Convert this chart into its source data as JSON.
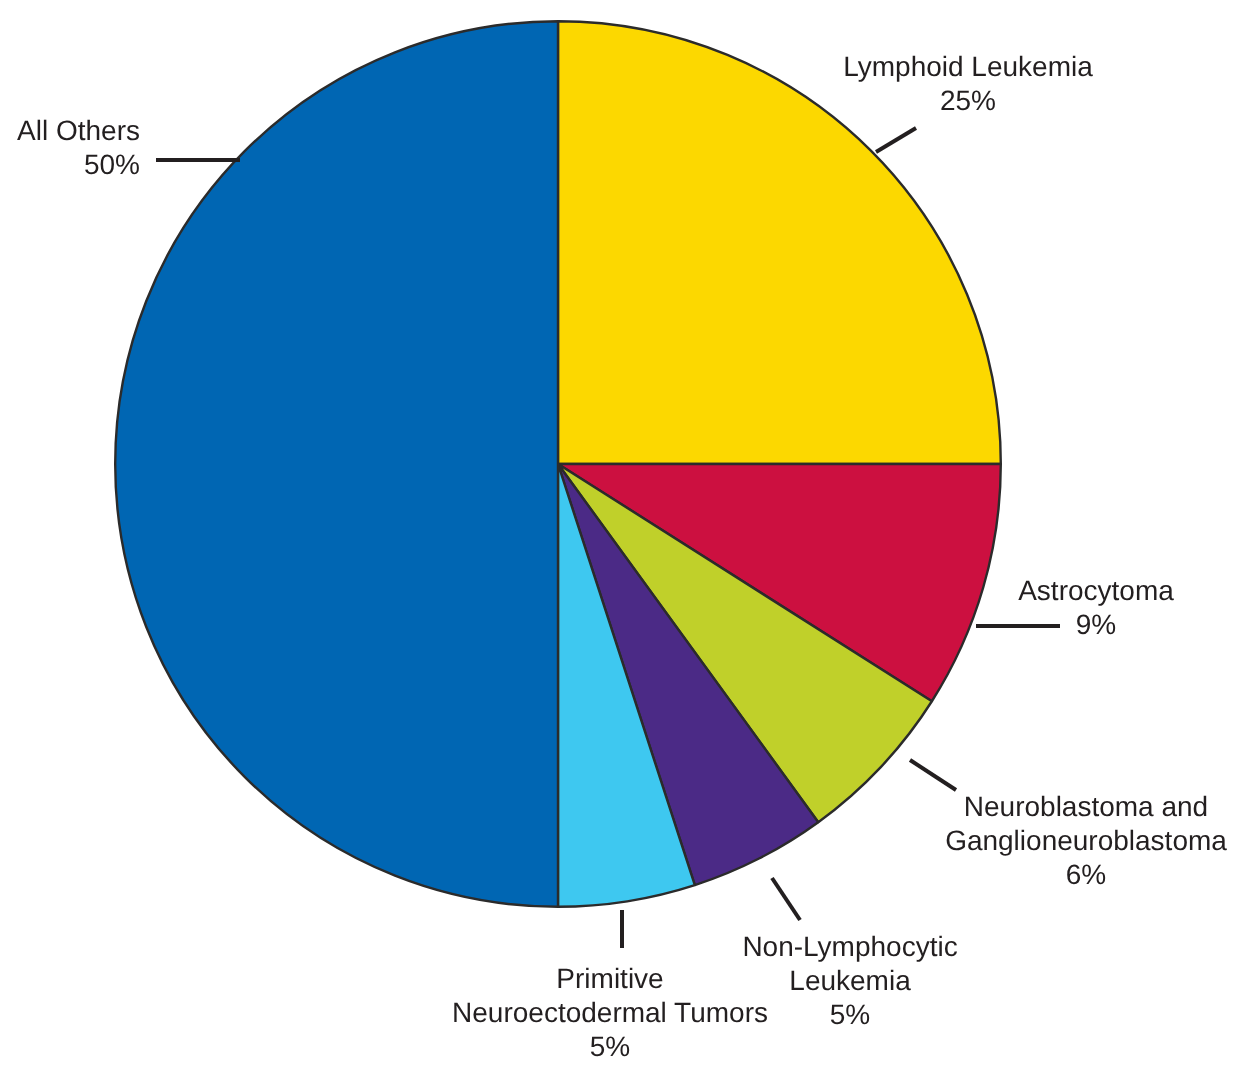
{
  "chart_data": {
    "type": "pie",
    "categories": [
      "Lymphoid Leukemia",
      "Astrocytoma",
      "Neuroblastoma and Ganglioneuroblastoma",
      "Non-Lymphocytic Leukemia",
      "Primitive Neuroectodermal Tumors",
      "All Others"
    ],
    "values": [
      25,
      9,
      6,
      5,
      5,
      50
    ],
    "colors": [
      "#fcd800",
      "#cc1040",
      "#c0d02a",
      "#4b2a86",
      "#3ec8f0",
      "#0066b3"
    ],
    "value_labels": [
      "25%",
      "9%",
      "6%",
      "5%",
      "5%",
      "50%"
    ],
    "legend": false
  }
}
